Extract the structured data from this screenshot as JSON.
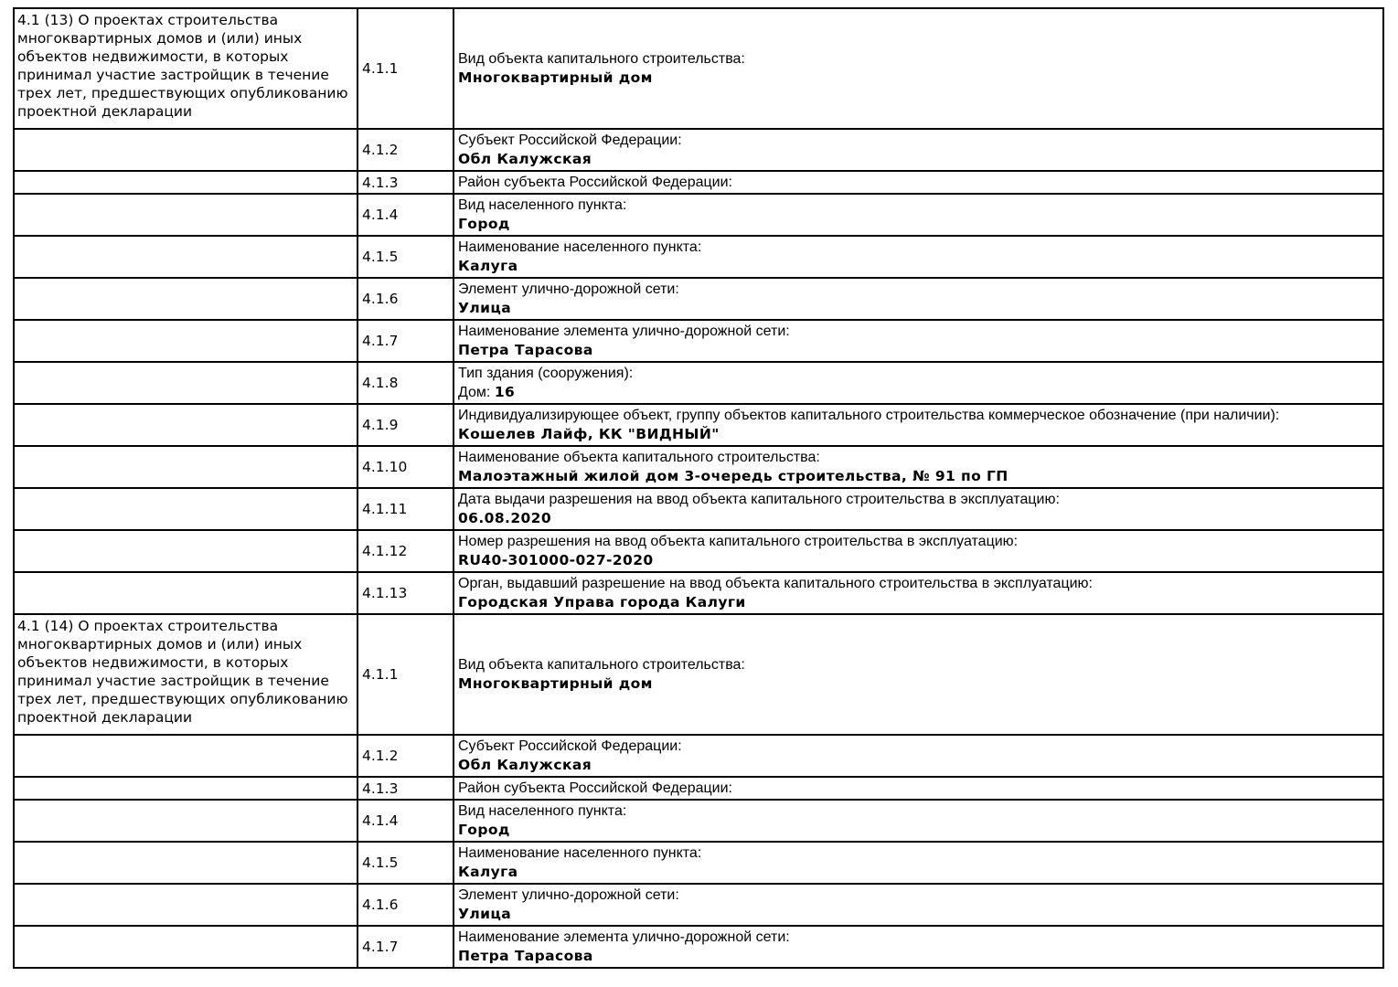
{
  "colors": {
    "background": "#ffffff",
    "border": "#000000",
    "text": "#000000"
  },
  "table": {
    "sections": [
      {
        "description": "4.1 (13) О проектах строительства многоквартирных домов и (или) иных объектов недвижимости, в которых принимал участие застройщик в течение трех лет, предшествующих опубликованию проектной декларации",
        "rows": [
          {
            "num": "4.1.1",
            "label": "Вид объекта капитального строительства:",
            "value": "Многоквартирный дом"
          },
          {
            "num": "4.1.2",
            "label": "Субъект Российской Федерации:",
            "value": "Обл Калужская"
          },
          {
            "num": "4.1.3",
            "label": "Район субъекта Российской Федерации:",
            "value": ""
          },
          {
            "num": "4.1.4",
            "label": "Вид населенного пункта:",
            "value": "Город"
          },
          {
            "num": "4.1.5",
            "label": "Наименование населенного пункта:",
            "value": "Калуга"
          },
          {
            "num": "4.1.6",
            "label": "Элемент улично-дорожной сети:",
            "value": "Улица"
          },
          {
            "num": "4.1.7",
            "label": "Наименование элемента улично-дорожной сети:",
            "value": "Петра Тарасова"
          },
          {
            "num": "4.1.8",
            "label": "Тип здания (сооружения):",
            "value_prefix": "Дом: ",
            "value": "16"
          },
          {
            "num": "4.1.9",
            "label": "Индивидуализирующее объект, группу объектов капитального строительства коммерческое обозначение (при наличии):",
            "value": "Кошелев Лайф, КК \"ВИДНЫЙ\""
          },
          {
            "num": "4.1.10",
            "label": "Наименование объекта капитального строительства:",
            "value": "Малоэтажный жилой дом 3-очередь строительства, № 91 по ГП"
          },
          {
            "num": "4.1.11",
            "label": "Дата выдачи разрешения на ввод объекта капитального строительства в эксплуатацию:",
            "value": "06.08.2020"
          },
          {
            "num": "4.1.12",
            "label": "Номер разрешения на ввод объекта капитального строительства в эксплуатацию:",
            "value": "RU40-301000-027-2020"
          },
          {
            "num": "4.1.13",
            "label": "Орган, выдавший разрешение на ввод объекта капитального строительства в эксплуатацию:",
            "value": "Городская Управа города Калуги"
          }
        ]
      },
      {
        "description": "4.1 (14) О проектах строительства многоквартирных домов и (или) иных объектов недвижимости, в которых принимал участие застройщик в течение трех лет, предшествующих опубликованию проектной декларации",
        "rows": [
          {
            "num": "4.1.1",
            "label": "Вид объекта капитального строительства:",
            "value": "Многоквартирный дом"
          },
          {
            "num": "4.1.2",
            "label": "Субъект Российской Федерации:",
            "value": "Обл Калужская"
          },
          {
            "num": "4.1.3",
            "label": "Район субъекта Российской Федерации:",
            "value": ""
          },
          {
            "num": "4.1.4",
            "label": "Вид населенного пункта:",
            "value": "Город"
          },
          {
            "num": "4.1.5",
            "label": "Наименование населенного пункта:",
            "value": "Калуга"
          },
          {
            "num": "4.1.6",
            "label": "Элемент улично-дорожной сети:",
            "value": "Улица"
          },
          {
            "num": "4.1.7",
            "label": "Наименование элемента улично-дорожной сети:",
            "value": "Петра Тарасова"
          }
        ]
      }
    ]
  }
}
